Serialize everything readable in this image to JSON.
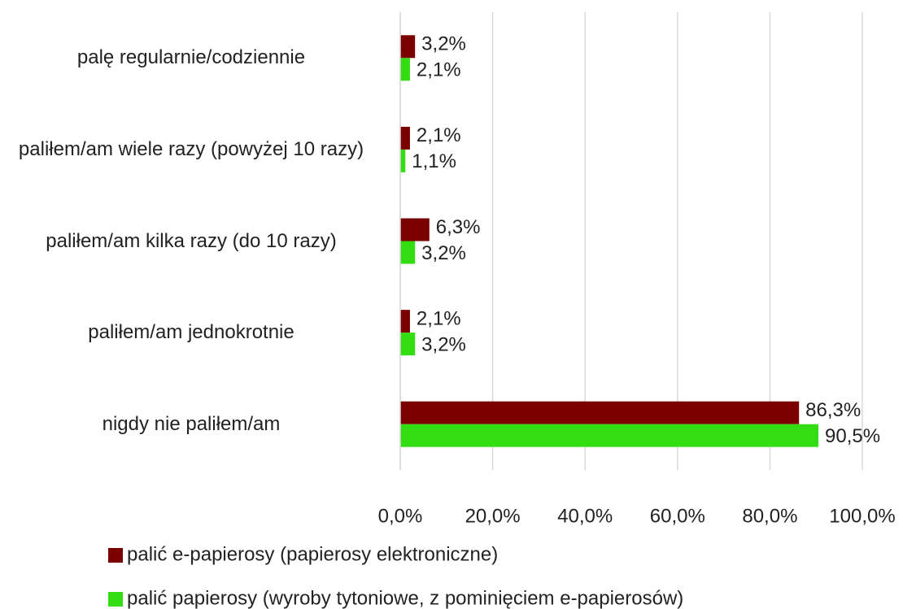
{
  "chart_data": {
    "type": "bar",
    "orientation": "horizontal",
    "categories": [
      "palę regularnie/codziennie",
      "paliłem/am wiele razy (powyżej 10 razy)",
      "paliłem/am kilka razy (do 10 razy)",
      "paliłem/am jednokrotnie",
      "nigdy nie paliłem/am"
    ],
    "series": [
      {
        "name": "palić e-papierosy (papierosy elektroniczne)",
        "color": "#7a0000",
        "values": [
          3.2,
          2.1,
          6.3,
          2.1,
          86.3
        ],
        "value_labels": [
          "3,2%",
          "2,1%",
          "6,3%",
          "2,1%",
          "86,3%"
        ]
      },
      {
        "name": "palić papierosy (wyroby tytoniowe, z pominięciem e-papierosów)",
        "color": "#33dd11",
        "values": [
          2.1,
          1.1,
          3.2,
          3.2,
          90.5
        ],
        "value_labels": [
          "2,1%",
          "1,1%",
          "3,2%",
          "3,2%",
          "90,5%"
        ]
      }
    ],
    "xlim": [
      0,
      100
    ],
    "xticks": [
      {
        "value": 0,
        "label": "0,0%"
      },
      {
        "value": 20,
        "label": "20,0%"
      },
      {
        "value": 40,
        "label": "40,0%"
      },
      {
        "value": 60,
        "label": "60,0%"
      },
      {
        "value": 80,
        "label": "80,0%"
      },
      {
        "value": 100,
        "label": "100,0%"
      }
    ],
    "grid": true,
    "legend": "bottom"
  }
}
